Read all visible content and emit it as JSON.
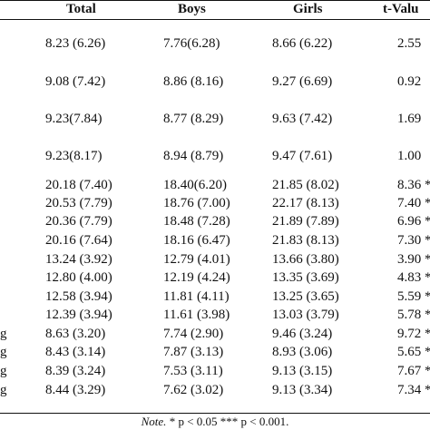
{
  "table": {
    "headers": {
      "total": "Total",
      "boys": "Boys",
      "girls": "Girls",
      "tvalue": "t-Valu"
    },
    "rows": [
      {
        "label": "",
        "total": "8.23 (6.26)",
        "boys": "7.76(6.28)",
        "girls": "8.66 (6.22)",
        "tvalue": "2.55"
      },
      {
        "label": "",
        "total": "9.08 (7.42)",
        "boys": "8.86 (8.16)",
        "girls": "9.27 (6.69)",
        "tvalue": "0.92"
      },
      {
        "label": "",
        "total": "9.23(7.84)",
        "boys": "8.77 (8.29)",
        "girls": "9.63 (7.42)",
        "tvalue": "1.69"
      },
      {
        "label": "",
        "total": "9.23(8.17)",
        "boys": "8.94 (8.79)",
        "girls": "9.47 (7.61)",
        "tvalue": "1.00"
      },
      {
        "label": "",
        "total": "20.18 (7.40)",
        "boys": "18.40(6.20)",
        "girls": "21.85 (8.02)",
        "tvalue": "8.36 *"
      },
      {
        "label": "",
        "total": "20.53 (7.79)",
        "boys": "18.76 (7.00)",
        "girls": "22.17 (8.13)",
        "tvalue": "7.40 *"
      },
      {
        "label": "",
        "total": "20.36 (7.79)",
        "boys": "18.48 (7.28)",
        "girls": "21.89 (7.89)",
        "tvalue": "6.96 *"
      },
      {
        "label": "",
        "total": "20.16 (7.64)",
        "boys": "18.16 (6.47)",
        "girls": "21.83 (8.13)",
        "tvalue": "7.30 *"
      },
      {
        "label": "",
        "total": "13.24 (3.92)",
        "boys": "12.79 (4.01)",
        "girls": "13.66 (3.80)",
        "tvalue": "3.90 *"
      },
      {
        "label": "",
        "total": "12.80 (4.00)",
        "boys": "12.19 (4.24)",
        "girls": "13.35 (3.69)",
        "tvalue": "4.83 *"
      },
      {
        "label": "",
        "total": "12.58 (3.94)",
        "boys": "11.81 (4.11)",
        "girls": "13.25 (3.65)",
        "tvalue": "5.59 *"
      },
      {
        "label": "",
        "total": "12.39 (3.94)",
        "boys": "11.61 (3.98)",
        "girls": "13.03 (3.79)",
        "tvalue": "5.78 *"
      },
      {
        "label": "g",
        "total": "8.63 (3.20)",
        "boys": "7.74 (2.90)",
        "girls": "9.46 (3.24)",
        "tvalue": "9.72 *"
      },
      {
        "label": "g",
        "total": "8.43 (3.14)",
        "boys": "7.87 (3.13)",
        "girls": "8.93 (3.06)",
        "tvalue": "5.65 *"
      },
      {
        "label": "g",
        "total": "8.39 (3.24)",
        "boys": "7.53 (3.11)",
        "girls": "9.13 (3.15)",
        "tvalue": "7.67 *"
      },
      {
        "label": "g",
        "total": "8.44 (3.29)",
        "boys": "7.62 (3.02)",
        "girls": "9.13 (3.34)",
        "tvalue": "7.34 *"
      }
    ]
  },
  "note": {
    "prefix": "Note.",
    "text": " * p < 0.05 *** p < 0.001."
  }
}
